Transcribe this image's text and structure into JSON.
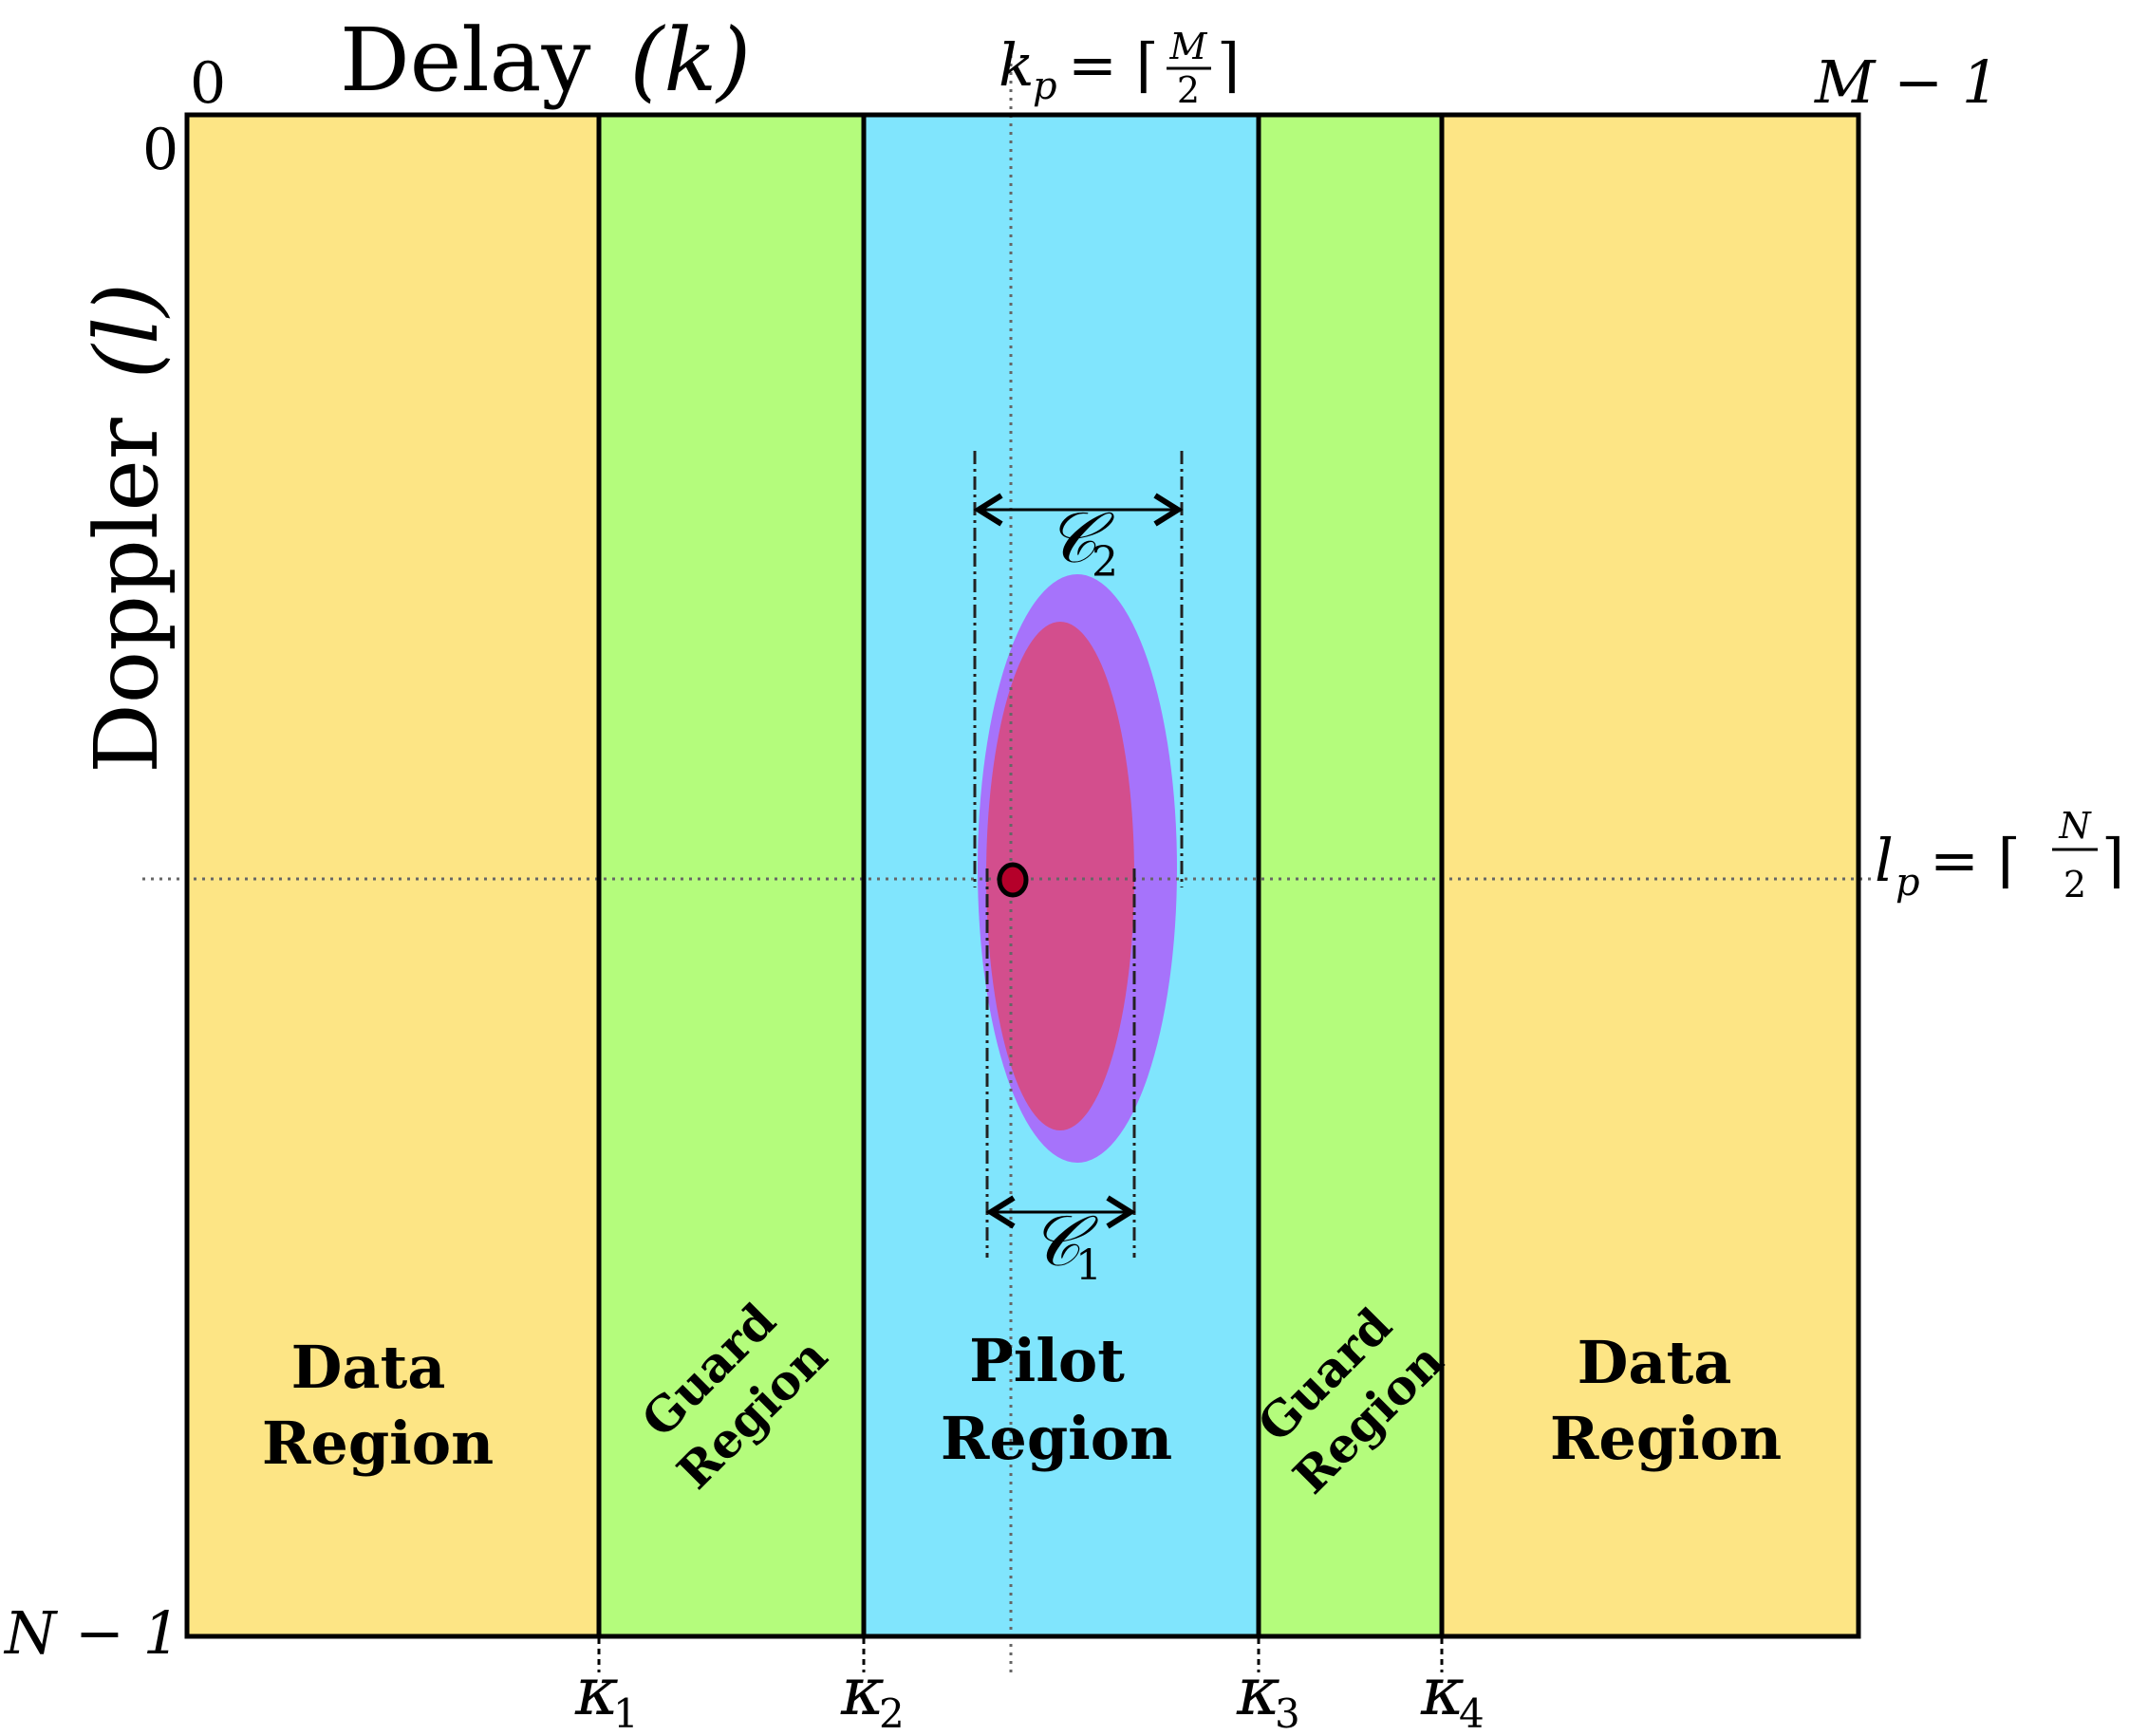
{
  "axes": {
    "delay_label": "Delay",
    "delay_var": "(k)",
    "doppler_label": "Doppler",
    "doppler_var": "(l)",
    "top_left_index": "0",
    "top_right_index": "M − 1",
    "left_top_index": "0",
    "left_bottom_index": "N − 1"
  },
  "pilot": {
    "kp_label": "k",
    "kp_sub": "p",
    "kp_eq": "= ⌈",
    "kp_num": "M",
    "kp_den": "2",
    "kp_close": "⌉",
    "lp_label": "l",
    "lp_sub": "p",
    "lp_eq": "= ⌈",
    "lp_num": "N",
    "lp_den": "2",
    "lp_close": "⌉"
  },
  "regions": {
    "data_left": [
      "Data",
      "Region"
    ],
    "guard_left": [
      "Guard",
      "Region"
    ],
    "pilot": [
      "Pilot",
      "Region"
    ],
    "guard_right": [
      "Guard",
      "Region"
    ],
    "data_right": [
      "Data",
      "Region"
    ]
  },
  "boundaries": [
    {
      "sym": "κ",
      "sub": "1"
    },
    {
      "sym": "κ",
      "sub": "2"
    },
    {
      "sym": "κ",
      "sub": "3"
    },
    {
      "sym": "κ",
      "sub": "4"
    }
  ],
  "spreads": {
    "c2_sym": "𝒞",
    "c2_sub": "2",
    "c1_sym": "𝒞",
    "c1_sub": "1"
  },
  "colors": {
    "data": "#fde585",
    "guard": "#b4fc7c",
    "pilot": "#80e5fd",
    "outer_ellipse": "#a673fb",
    "inner_ellipse": "#d34e8d",
    "pilot_dot": "#b5002a"
  }
}
